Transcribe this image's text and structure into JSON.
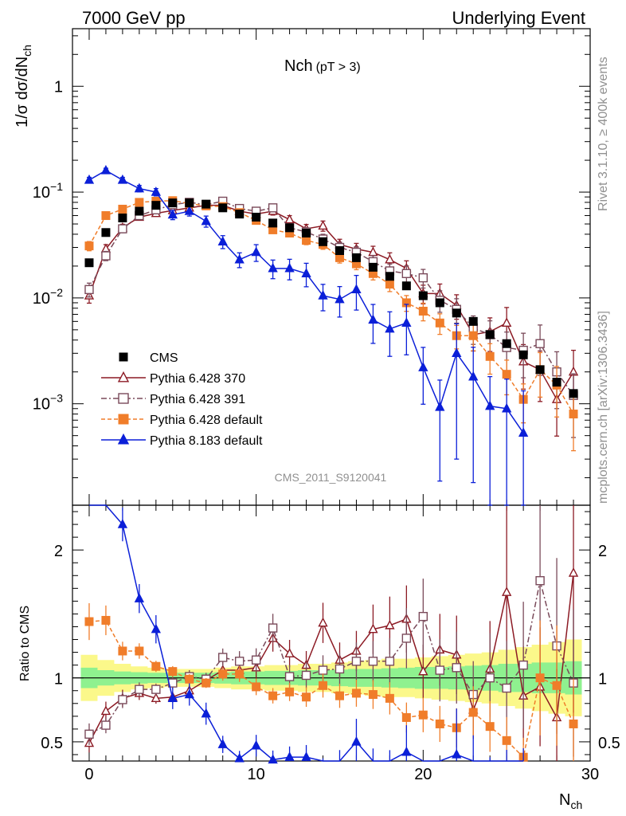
{
  "header": {
    "left": "7000 GeV pp",
    "right": "Underlying Event"
  },
  "side_text": {
    "rivet": "Rivet 3.1.10, ≥ 400k events",
    "mcplots": "mcplots.cern.ch [arXiv:1306.3436]"
  },
  "analysis_label": "CMS_2011_S9120041",
  "chart_data": {
    "type": "scatter",
    "title": "Nch",
    "title_sub": "(pT >  3)",
    "xlabel": "N",
    "xlabel_sub": "ch",
    "ylabel": "1/σ dσ/dN",
    "ylabel_sub": "ch",
    "ratio_ylabel": "Ratio to CMS",
    "xlim": [
      -1,
      30
    ],
    "ylim_main": [
      0.00011,
      3.5
    ],
    "ylim_ratio": [
      0.35,
      2.35
    ],
    "x_ticks": [
      "0",
      "10",
      "20",
      "30"
    ],
    "y_ticks_main": [
      {
        "mant": "10",
        "exp": "−3",
        "value": 0.001
      },
      {
        "mant": "10",
        "exp": "−2",
        "value": 0.01
      },
      {
        "mant": "10",
        "exp": "−1",
        "value": 0.1
      },
      {
        "mant": "1",
        "exp": "",
        "value": 1
      }
    ],
    "y_ticks_ratio": [
      "0.5",
      "1",
      "2"
    ],
    "legend": [
      {
        "label": "CMS"
      },
      {
        "label": "Pythia 6.428 370"
      },
      {
        "label": "Pythia 6.428 391"
      },
      {
        "label": "Pythia 6.428 default"
      },
      {
        "label": "Pythia 8.183 default"
      }
    ],
    "data": {
      "name": "CMS",
      "x": [
        0,
        1,
        2,
        3,
        4,
        5,
        6,
        7,
        8,
        9,
        10,
        11,
        12,
        13,
        14,
        15,
        16,
        17,
        18,
        19,
        20,
        21,
        22,
        23,
        24,
        25,
        26,
        27,
        28,
        29
      ],
      "values": [
        0.0215,
        0.0415,
        0.057,
        0.066,
        0.075,
        0.079,
        0.079,
        0.077,
        0.071,
        0.062,
        0.058,
        0.051,
        0.046,
        0.041,
        0.034,
        0.028,
        0.024,
        0.0195,
        0.016,
        0.013,
        0.0105,
        0.009,
        0.0072,
        0.006,
        0.0045,
        0.0037,
        0.0029,
        0.0021,
        0.0016,
        0.00125
      ],
      "band_inner": [
        0.08,
        0.06,
        0.05,
        0.045,
        0.04,
        0.04,
        0.04,
        0.04,
        0.045,
        0.05,
        0.05,
        0.055,
        0.055,
        0.06,
        0.06,
        0.065,
        0.07,
        0.07,
        0.075,
        0.08,
        0.085,
        0.085,
        0.09,
        0.095,
        0.1,
        0.11,
        0.11,
        0.12,
        0.12,
        0.13
      ],
      "band_outer": [
        0.18,
        0.14,
        0.11,
        0.09,
        0.08,
        0.07,
        0.07,
        0.07,
        0.08,
        0.09,
        0.09,
        0.1,
        0.1,
        0.11,
        0.11,
        0.12,
        0.13,
        0.14,
        0.15,
        0.15,
        0.16,
        0.17,
        0.18,
        0.19,
        0.2,
        0.22,
        0.24,
        0.26,
        0.28,
        0.3
      ]
    },
    "series": [
      {
        "name": "Pythia 6.428 370",
        "color": "#8c1a24",
        "marker": "triangle-open",
        "dash": "",
        "values": [
          0.0105,
          0.029,
          0.046,
          0.058,
          0.063,
          0.067,
          0.071,
          0.075,
          0.075,
          0.066,
          0.062,
          0.066,
          0.055,
          0.045,
          0.048,
          0.032,
          0.029,
          0.027,
          0.023,
          0.019,
          0.011,
          0.011,
          0.0085,
          0.0045,
          0.0048,
          0.0058,
          0.0025,
          0.0021,
          0.0011,
          0.002
        ],
        "ratio": [
          0.49,
          0.74,
          0.84,
          0.88,
          0.84,
          0.85,
          0.9,
          0.98,
          1.06,
          1.06,
          1.08,
          1.31,
          1.19,
          1.1,
          1.43,
          1.14,
          1.21,
          1.38,
          1.41,
          1.46,
          1.05,
          1.22,
          1.18,
          0.75,
          1.07,
          1.67,
          0.86,
          0.93,
          0.69,
          1.82
        ],
        "yerr": [
          0.15,
          0.1,
          0.08,
          0.06,
          0.05,
          0.05,
          0.05,
          0.05,
          0.06,
          0.07,
          0.08,
          0.08,
          0.09,
          0.1,
          0.11,
          0.12,
          0.13,
          0.14,
          0.16,
          0.18,
          0.2,
          0.23,
          0.26,
          0.3,
          0.35,
          0.4,
          0.45,
          0.5,
          0.55,
          0.6
        ]
      },
      {
        "name": "Pythia 6.428 391",
        "color": "#7a4a5a",
        "marker": "square-open",
        "dash": "7,3,2,3",
        "values": [
          0.012,
          0.025,
          0.045,
          0.06,
          0.068,
          0.076,
          0.08,
          0.076,
          0.082,
          0.07,
          0.066,
          0.071,
          0.046,
          0.042,
          0.036,
          0.03,
          0.027,
          0.022,
          0.018,
          0.017,
          0.0155,
          0.0095,
          0.0078,
          0.0052,
          0.0045,
          0.0034,
          0.0032,
          0.0037,
          0.002,
          0.0012
        ],
        "ratio": [
          0.56,
          0.63,
          0.83,
          0.91,
          0.91,
          0.96,
          1.01,
          0.99,
          1.16,
          1.13,
          1.14,
          1.39,
          1.01,
          1.02,
          1.06,
          1.07,
          1.13,
          1.13,
          1.13,
          1.31,
          1.48,
          1.06,
          1.08,
          0.87,
          1.0,
          0.92,
          1.1,
          1.76,
          1.25,
          0.96
        ],
        "yerr": [
          0.15,
          0.1,
          0.08,
          0.06,
          0.05,
          0.05,
          0.05,
          0.05,
          0.06,
          0.07,
          0.08,
          0.08,
          0.09,
          0.1,
          0.11,
          0.12,
          0.13,
          0.14,
          0.16,
          0.18,
          0.2,
          0.23,
          0.26,
          0.3,
          0.35,
          0.4,
          0.45,
          0.5,
          0.55,
          0.6
        ]
      },
      {
        "name": "Pythia 6.428 default",
        "color": "#f07d2a",
        "marker": "square",
        "dash": "5,3",
        "values": [
          0.031,
          0.06,
          0.069,
          0.08,
          0.082,
          0.083,
          0.078,
          0.074,
          0.073,
          0.064,
          0.054,
          0.044,
          0.041,
          0.035,
          0.032,
          0.024,
          0.021,
          0.017,
          0.0135,
          0.009,
          0.0075,
          0.0058,
          0.0044,
          0.0044,
          0.0028,
          0.0019,
          0.0011,
          0.0021,
          0.0015,
          0.0008
        ],
        "ratio": [
          1.44,
          1.45,
          1.21,
          1.21,
          1.09,
          1.05,
          0.99,
          0.96,
          1.03,
          1.03,
          0.93,
          0.86,
          0.89,
          0.85,
          0.94,
          0.86,
          0.88,
          0.87,
          0.84,
          0.69,
          0.71,
          0.64,
          0.61,
          0.73,
          0.62,
          0.51,
          0.38,
          1.0,
          0.94,
          0.64
        ],
        "yerr": [
          0.1,
          0.08,
          0.06,
          0.05,
          0.04,
          0.04,
          0.04,
          0.04,
          0.05,
          0.06,
          0.07,
          0.07,
          0.08,
          0.09,
          0.1,
          0.11,
          0.12,
          0.13,
          0.15,
          0.17,
          0.19,
          0.22,
          0.25,
          0.28,
          0.32,
          0.36,
          0.4,
          0.45,
          0.5,
          0.55
        ]
      },
      {
        "name": "Pythia 8.183 default",
        "color": "#0b1fd8",
        "marker": "triangle",
        "dash": "",
        "values": [
          0.13,
          0.16,
          0.13,
          0.108,
          0.1,
          0.061,
          0.066,
          0.053,
          0.034,
          0.023,
          0.027,
          0.019,
          0.019,
          0.017,
          0.0105,
          0.0097,
          0.012,
          0.0062,
          0.0051,
          0.0058,
          0.0022,
          0.00093,
          0.003,
          0.0018,
          0.00095,
          0.0009,
          0.00053,
          null,
          null,
          null
        ],
        "ratio": [
          3.5,
          3.4,
          2.2,
          1.62,
          1.38,
          0.84,
          0.87,
          0.72,
          0.48,
          0.37,
          0.47,
          0.36,
          0.38,
          0.38,
          0.29,
          0.33,
          0.5,
          0.32,
          0.3,
          0.42,
          0.2,
          0.1,
          0.4,
          0.29,
          0.2,
          0.23,
          0.18,
          null,
          null,
          null
        ],
        "yerr": [
          0.06,
          0.05,
          0.06,
          0.07,
          0.08,
          0.1,
          0.1,
          0.12,
          0.14,
          0.16,
          0.18,
          0.2,
          0.22,
          0.25,
          0.28,
          0.32,
          0.36,
          0.4,
          0.45,
          0.5,
          0.55,
          0.8,
          0.9,
          0.9,
          0.9,
          0.9,
          1.5,
          0,
          0,
          0
        ]
      }
    ]
  }
}
